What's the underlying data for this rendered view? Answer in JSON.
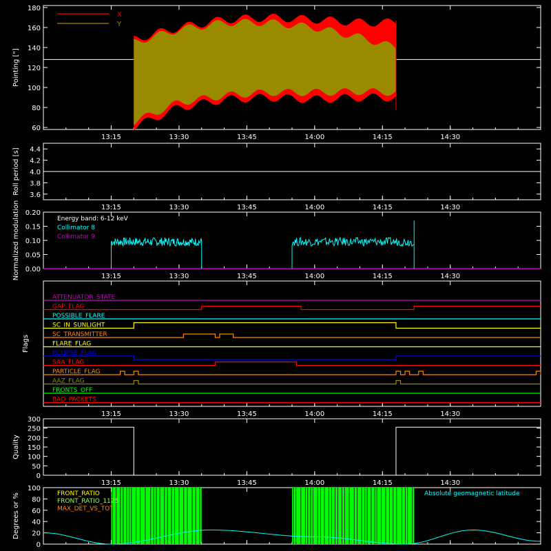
{
  "x_ticks": [
    "13:15",
    "13:30",
    "13:45",
    "14:00",
    "14:15",
    "14:30"
  ],
  "colors": {
    "fg": "#ffffff",
    "red": "#ff0000",
    "olive": "#9a8a00",
    "cyan": "#00ffff",
    "magenta": "#cc00cc",
    "yellow": "#ffff00",
    "orange": "#ff8800",
    "blue": "#0000ff",
    "green": "#00ff00",
    "lightgreen": "#99ff55"
  },
  "chart_data": [
    {
      "type": "area",
      "ylabel": "Pointing [\"]",
      "yticks": [
        "60",
        "80",
        "100",
        "120",
        "140",
        "160",
        "180"
      ],
      "ylim": [
        58,
        182
      ],
      "legend": [
        "X",
        "Y"
      ],
      "reference_level": 128,
      "data_time_range": [
        "13:20",
        "14:18"
      ],
      "series": [
        {
          "name": "X",
          "color": "red",
          "upper_envelope": [
            [
              13.33,
              148
            ],
            [
              13.5,
              160
            ],
            [
              13.67,
              168
            ],
            [
              13.83,
              170
            ],
            [
              14.0,
              168
            ],
            [
              14.17,
              165
            ],
            [
              14.3,
              165
            ]
          ],
          "lower_envelope": [
            [
              13.33,
              60
            ],
            [
              13.5,
              80
            ],
            [
              13.67,
              88
            ],
            [
              13.83,
              90
            ],
            [
              14.0,
              88
            ],
            [
              14.17,
              90
            ],
            [
              14.3,
              90
            ]
          ]
        },
        {
          "name": "Y",
          "color": "olive",
          "upper_envelope": [
            [
              13.33,
              145
            ],
            [
              13.5,
              158
            ],
            [
              13.67,
              165
            ],
            [
              13.83,
              165
            ],
            [
              14.0,
              160
            ],
            [
              14.17,
              150
            ],
            [
              14.3,
              140
            ]
          ],
          "lower_envelope": [
            [
              13.33,
              65
            ],
            [
              13.5,
              85
            ],
            [
              13.67,
              92
            ],
            [
              13.83,
              95
            ],
            [
              14.0,
              95
            ],
            [
              14.17,
              96
            ],
            [
              14.3,
              95
            ]
          ]
        }
      ]
    },
    {
      "type": "line",
      "ylabel": "Roll period [s]",
      "yticks": [
        "3.6",
        "3.8",
        "4.0",
        "4.2",
        "4.4"
      ],
      "ylim": [
        3.5,
        4.5
      ],
      "series": [
        {
          "name": "roll",
          "color": "fg",
          "value": 4.0,
          "x_range": [
            "13:00",
            "14:50"
          ]
        }
      ]
    },
    {
      "type": "line",
      "ylabel": "Normalized modulation",
      "yticks": [
        "0.00",
        "0.05",
        "0.10",
        "0.15",
        "0.20"
      ],
      "ylim": [
        0,
        0.2
      ],
      "annotations": [
        "Energy band: 6-12 keV"
      ],
      "series": [
        {
          "name": "Collimator 8",
          "color": "cyan",
          "segments": [
            [
              "13:15",
              "13:35"
            ],
            [
              "13:55",
              "14:22"
            ]
          ],
          "typical_value": 0.095
        },
        {
          "name": "Collimator 9",
          "color": "magenta",
          "value": 0.0
        }
      ]
    },
    {
      "type": "table",
      "ylabel": "Flags",
      "flags": [
        {
          "label": "ATTENUATOR_STATE",
          "color": "magenta"
        },
        {
          "label": "GAP_FLAG",
          "color": "red"
        },
        {
          "label": "POSSIBLE_FLARE",
          "color": "cyan"
        },
        {
          "label": "SC_IN_SUNLIGHT",
          "color": "yellow"
        },
        {
          "label": "SC_TRANSMITTER",
          "color": "orange"
        },
        {
          "label": "FLARE_FLAG",
          "color": "yellow"
        },
        {
          "label": "ECLIPSE_FLAG",
          "color": "blue"
        },
        {
          "label": "SAA_FLAG",
          "color": "red"
        },
        {
          "label": "PARTICLE_FLAG",
          "color": "orange"
        },
        {
          "label": "AAZ_FLAG",
          "color": "olive"
        },
        {
          "label": "FRONTS_OFF",
          "color": "green"
        },
        {
          "label": "BAD_PACKETS",
          "color": "red"
        }
      ]
    },
    {
      "type": "line",
      "ylabel": "Quality",
      "yticks": [
        "0",
        "50",
        "100",
        "150",
        "200",
        "250",
        "300"
      ],
      "ylim": [
        0,
        300
      ],
      "series": [
        {
          "name": "quality",
          "color": "fg",
          "steps": [
            [
              "13:00",
              255
            ],
            [
              "13:20",
              0
            ],
            [
              "14:18",
              255
            ],
            [
              "14:50",
              255
            ]
          ]
        }
      ]
    },
    {
      "type": "bar",
      "ylabel": "Degrees or %",
      "yticks": [
        "0",
        "20",
        "40",
        "60",
        "80",
        "100"
      ],
      "ylim": [
        0,
        100
      ],
      "legend": [
        "FRONT_RATIO",
        "FRONT_RATIO_1125",
        "MAX_DET_VS_TOT"
      ],
      "right_annotation": "Absolute geomagnetic latitude",
      "series": [
        {
          "name": "FRONT_RATIO",
          "color": "green",
          "segments": [
            [
              "13:15",
              "13:35"
            ],
            [
              "13:55",
              "14:22"
            ]
          ],
          "value": 100
        },
        {
          "name": "Absolute geomagnetic latitude",
          "color": "cyan",
          "points": [
            [
              "13:00",
              20
            ],
            [
              "13:15",
              0
            ],
            [
              "13:37",
              25
            ],
            [
              "14:00",
              13
            ],
            [
              "14:20",
              0
            ],
            [
              "14:35",
              25
            ],
            [
              "14:50",
              5
            ]
          ]
        }
      ]
    }
  ]
}
